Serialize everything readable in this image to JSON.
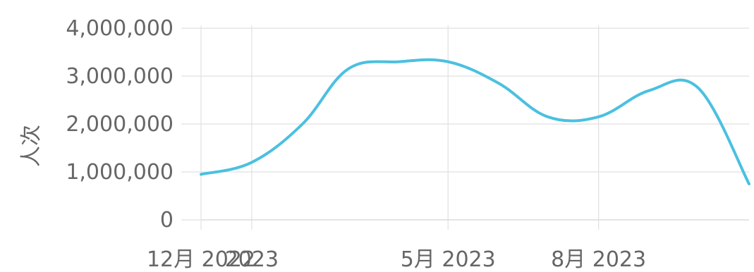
{
  "chart_data": {
    "type": "line",
    "title": "",
    "xlabel": "",
    "ylabel": "人次",
    "ylim": [
      0,
      4000000
    ],
    "y_ticks": [
      0,
      1000000,
      2000000,
      3000000,
      4000000
    ],
    "y_tick_labels": [
      "0",
      "1,000,000",
      "2,000,000",
      "3,000,000",
      "4,000,000"
    ],
    "x_ticks": [
      {
        "date": "2022-12-01",
        "label": "12月 2022"
      },
      {
        "date": "2023-01-01",
        "label": "2023"
      },
      {
        "date": "2023-05-01",
        "label": "5月 2023"
      },
      {
        "date": "2023-08-01",
        "label": "8月 2023"
      }
    ],
    "grid": true,
    "series": [
      {
        "name": "",
        "color": "#4bc0e0",
        "x": [
          "2022-12-01",
          "2023-01-01",
          "2023-02-01",
          "2023-03-01",
          "2023-04-01",
          "2023-05-01",
          "2023-06-01",
          "2023-07-01",
          "2023-08-01",
          "2023-09-01",
          "2023-10-01",
          "2023-11-01"
        ],
        "values": [
          950000,
          1200000,
          2000000,
          3150000,
          3300000,
          3300000,
          2850000,
          2150000,
          2150000,
          2700000,
          2750000,
          750000
        ]
      }
    ]
  }
}
